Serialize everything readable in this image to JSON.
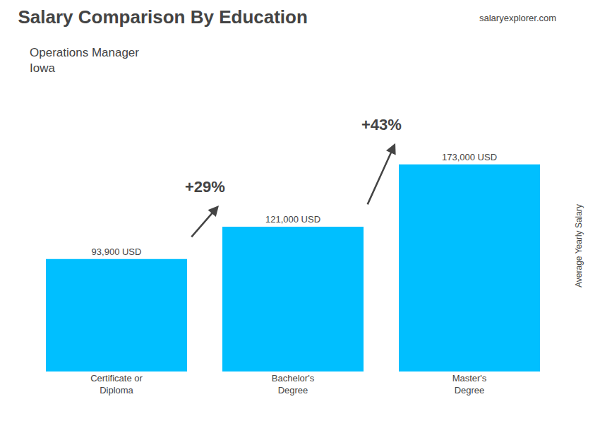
{
  "chart_data": {
    "type": "bar",
    "title": "Salary Comparison By Education",
    "subtitle": "Operations Manager\nIowa",
    "categories": [
      "Certificate or\nDiploma",
      "Bachelor's\nDegree",
      "Master's\nDegree"
    ],
    "values": [
      93900,
      121000,
      173000
    ],
    "value_labels": [
      "93,900 USD",
      "121,000 USD",
      "173,000 USD"
    ],
    "data_labels": true,
    "color": "#00BFFF",
    "ylabel": "Average Yearly Salary",
    "ylim": [
      0,
      210000
    ],
    "tick_labels": "x",
    "grid": false,
    "annotations": [
      "+29%",
      "+43%",
      "salaryexplorer.com"
    ]
  }
}
